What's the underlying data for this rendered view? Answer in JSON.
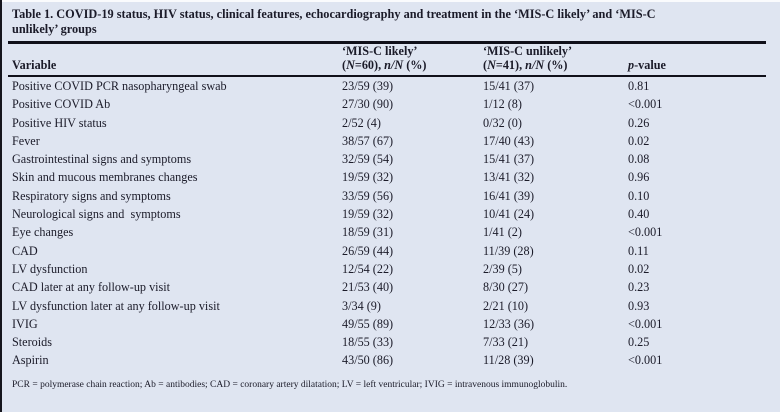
{
  "title_lines": [
    "Table 1. COVID-19 status, HIV status, clinical features, echocardiography and treatment in the ‘MIS-C likely’ and ‘MIS-C",
    "unlikely’ groups"
  ],
  "table": {
    "header": {
      "variable_label": "Variable",
      "groups": [
        {
          "name": "‘MIS-C likely’",
          "sub": "(N=60), n/N (%)"
        },
        {
          "name": "‘MIS-C unlikely’",
          "sub": "(N=41), n/N (%)"
        }
      ],
      "p_label": "p-value"
    },
    "rows": [
      [
        "Positive COVID PCR nasopharyngeal swab",
        "23/59 (39)",
        "15/41 (37)",
        "0.81"
      ],
      [
        "Positive COVID Ab",
        "27/30 (90)",
        "1/12 (8)",
        "<0.001"
      ],
      [
        "Positive HIV status",
        "2/52 (4)",
        "0/32 (0)",
        "0.26"
      ],
      [
        "Fever",
        "38/57 (67)",
        "17/40 (43)",
        "0.02"
      ],
      [
        "Gastrointestinal signs and symptoms",
        "32/59 (54)",
        "15/41 (37)",
        "0.08"
      ],
      [
        "Skin and mucous membranes changes",
        "19/59 (32)",
        "13/41 (32)",
        "0.96"
      ],
      [
        "Respiratory signs and symptoms",
        "33/59 (56)",
        "16/41 (39)",
        "0.10"
      ],
      [
        "Neurological signs and  symptoms",
        "19/59 (32)",
        "10/41 (24)",
        "0.40"
      ],
      [
        "Eye changes",
        "18/59 (31)",
        "1/41 (2)",
        "<0.001"
      ],
      [
        "CAD",
        "26/59 (44)",
        "11/39 (28)",
        "0.11"
      ],
      [
        "LV dysfunction",
        "12/54 (22)",
        "2/39 (5)",
        "0.02"
      ],
      [
        "CAD later at any follow-up visit",
        "21/53 (40)",
        "8/30 (27)",
        "0.23"
      ],
      [
        "LV dysfunction later at any follow-up visit",
        "3/34 (9)",
        "2/21 (10)",
        "0.93"
      ],
      [
        "IVIG",
        "49/55 (89)",
        "12/33 (36)",
        "<0.001"
      ],
      [
        "Steroids",
        "18/55 (33)",
        "7/33 (21)",
        "0.25"
      ],
      [
        "Aspirin",
        "43/50 (86)",
        "11/28 (39)",
        "<0.001"
      ]
    ]
  },
  "footnote": "PCR = polymerase chain reaction; Ab = antibodies; CAD = coronary artery dilatation; LV = left ventricular; IVIG = intravenous immunoglobulin.",
  "colors": {
    "background": "#dfe5f1",
    "ink": "#1b1b29",
    "rule": "#10101a"
  }
}
